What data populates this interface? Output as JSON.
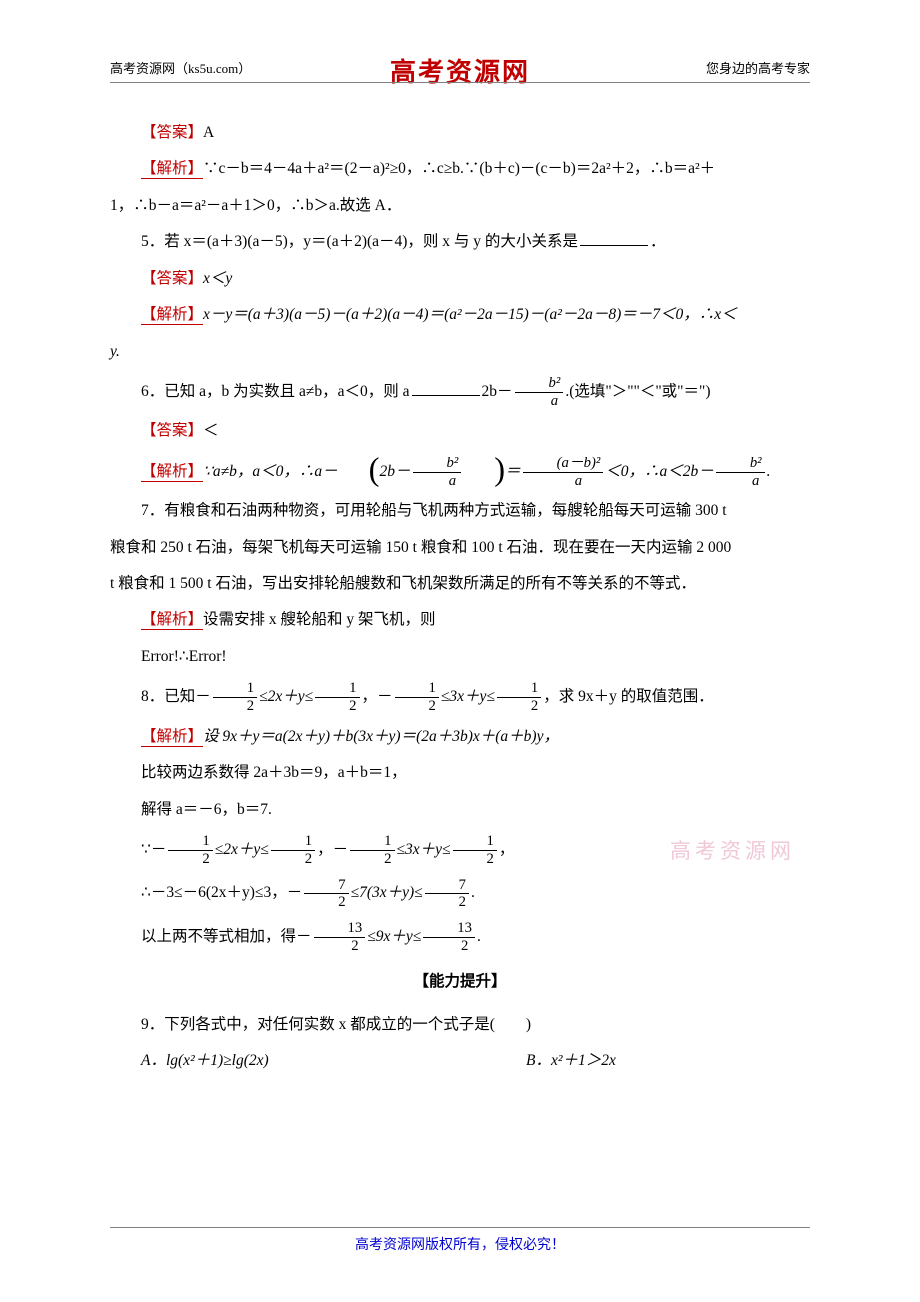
{
  "header": {
    "left_site": "高考资源网",
    "left_url": "（ks5u.com）",
    "center": "高考资源网",
    "right": "您身边的高考专家"
  },
  "watermark": "高考资源网",
  "footer": "高考资源网版权所有，侵权必究！",
  "colors": {
    "red": "#c00000",
    "blue": "#0000d0",
    "text": "#000000",
    "watermark": "#f0c8d8",
    "rule": "#808080"
  },
  "answers": {
    "q4_label": "【答案】",
    "q4_value": "A",
    "q5_label": "【答案】",
    "q5_value": "x＜y",
    "q6_label": "【答案】",
    "q6_value": "＜"
  },
  "analysis_label": "【解析】",
  "q4": {
    "analysis_text_1": "∵c－b＝4－4a＋a²＝(2－a)²≥0，∴c≥b.∵(b＋c)－(c－b)＝2a²＋2，∴b＝a²＋",
    "analysis_text_2": "1，∴b－a＝a²－a＋1＞0，∴b＞a.故选 A．"
  },
  "q5": {
    "stem": "5．若 x＝(a＋3)(a－5)，y＝(a＋2)(a－4)，则 x 与 y 的大小关系是",
    "period": "．",
    "analysis_1": "x－y＝(a＋3)(a－5)－(a＋2)(a－4)＝(a²－2a－15)－(a²－2a－8)＝－7＜0，∴x＜",
    "analysis_2": "y."
  },
  "q6": {
    "stem_1": "6．已知 a，b 为实数且 a≠b，a＜0，则 a",
    "stem_2": "2b－",
    "frac_num": "b²",
    "frac_den": "a",
    "stem_3": ".(选填\"＞\"\"＜\"或\"＝\")",
    "analysis_1": "∵a≠b，a＜0，∴a－",
    "analysis_mid1": "2b－",
    "analysis_eq": "＝",
    "frac2_num": "(a－b)²",
    "frac2_den": "a",
    "analysis_lt": "＜0，∴a＜2b－",
    "analysis_end": "."
  },
  "q7": {
    "line1": "7．有粮食和石油两种物资，可用轮船与飞机两种方式运输，每艘轮船每天可运输 300 t",
    "line2": "粮食和 250 t 石油，每架飞机每天可运输 150 t 粮食和 100 t 石油．现在要在一天内运输 2 000",
    "line3": "t 粮食和 1 500 t 石油，写出安排轮船艘数和飞机架数所满足的所有不等关系的不等式．",
    "analysis": "设需安排 x 艘轮船和 y 架飞机，则",
    "error": "Error!∴Error!"
  },
  "q8": {
    "stem_prefix": "8．已知－",
    "half_num": "1",
    "half_den": "2",
    "stem_mid1": "≤2x＋y≤",
    "stem_mid2": "，－",
    "stem_mid3": "≤3x＋y≤",
    "stem_suffix": "，求 9x＋y 的取值范围．",
    "a1": "设 9x＋y＝a(2x＋y)＋b(3x＋y)＝(2a＋3b)x＋(a＋b)y，",
    "a2": "比较两边系数得 2a＋3b＝9，a＋b＝1，",
    "a3": "解得 a＝－6，b＝7.",
    "a4_pre": "∵－",
    "a4_m1": "≤2x＋y≤",
    "a4_m2": "，－",
    "a4_m3": "≤3x＋y≤",
    "a4_end": "，",
    "a5_pre": "∴－3≤－6(2x＋y)≤3，－",
    "seven_num": "7",
    "seven_den": "2",
    "a5_mid": "≤7(3x＋y)≤",
    "a5_end": ".",
    "a6_pre": "以上两不等式相加，得－",
    "thirteen_num": "13",
    "thirteen_den": "2",
    "a6_mid": "≤9x＋y≤",
    "a6_end": "."
  },
  "section": "【能力提升】",
  "q9": {
    "stem": "9．下列各式中，对任何实数 x 都成立的一个式子是(　　)",
    "optA": "A．lg(x²＋1)≥lg(2x)",
    "optB": "B．x²＋1＞2x"
  }
}
